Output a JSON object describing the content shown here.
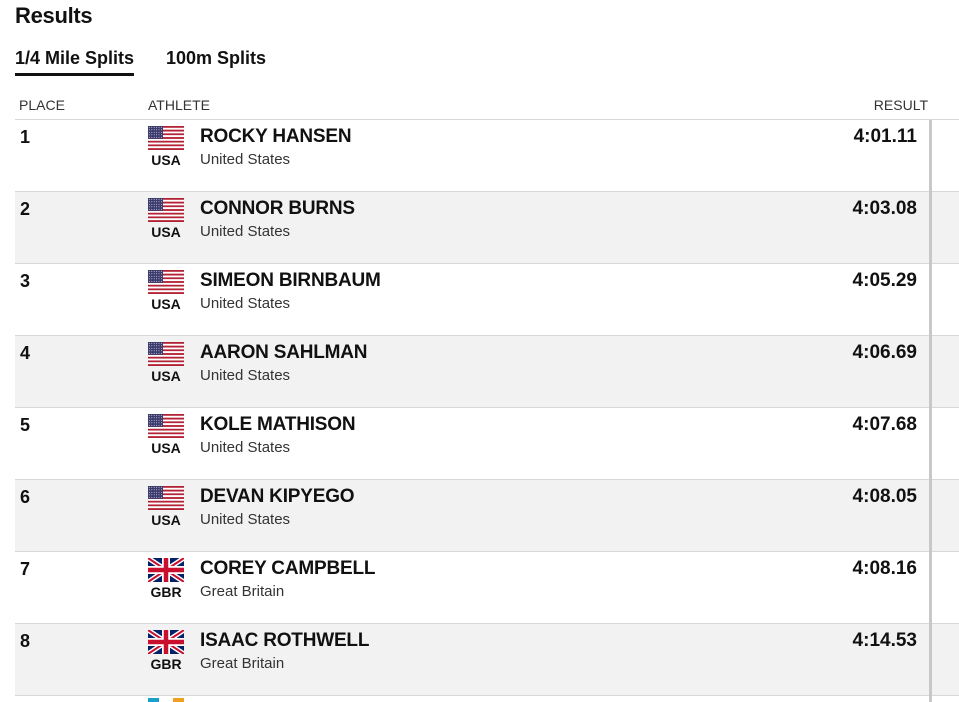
{
  "page": {
    "title": "Results"
  },
  "tabs": [
    {
      "label": "1/4 Mile Splits",
      "active": true
    },
    {
      "label": "100m Splits",
      "active": false
    }
  ],
  "table": {
    "columns": {
      "place": "PLACE",
      "athlete": "ATHLETE",
      "result": "RESULT"
    },
    "rows": [
      {
        "place": "1",
        "flag_icon": "usa-flag-icon",
        "code": "USA",
        "name": "ROCKY HANSEN",
        "country": "United States",
        "result": "4:01.11"
      },
      {
        "place": "2",
        "flag_icon": "usa-flag-icon",
        "code": "USA",
        "name": "CONNOR BURNS",
        "country": "United States",
        "result": "4:03.08"
      },
      {
        "place": "3",
        "flag_icon": "usa-flag-icon",
        "code": "USA",
        "name": "SIMEON BIRNBAUM",
        "country": "United States",
        "result": "4:05.29"
      },
      {
        "place": "4",
        "flag_icon": "usa-flag-icon",
        "code": "USA",
        "name": "AARON SAHLMAN",
        "country": "United States",
        "result": "4:06.69"
      },
      {
        "place": "5",
        "flag_icon": "usa-flag-icon",
        "code": "USA",
        "name": "KOLE MATHISON",
        "country": "United States",
        "result": "4:07.68"
      },
      {
        "place": "6",
        "flag_icon": "usa-flag-icon",
        "code": "USA",
        "name": "DEVAN KIPYEGO",
        "country": "United States",
        "result": "4:08.05"
      },
      {
        "place": "7",
        "flag_icon": "gbr-flag-icon",
        "code": "GBR",
        "name": "COREY CAMPBELL",
        "country": "Great Britain",
        "result": "4:08.16"
      },
      {
        "place": "8",
        "flag_icon": "gbr-flag-icon",
        "code": "GBR",
        "name": "ISAAC ROTHWELL",
        "country": "Great Britain",
        "result": "4:14.53"
      }
    ]
  },
  "colors": {
    "text": "#111111",
    "alt_row": "#f2f2f2",
    "divider": "#d8d8d8"
  }
}
